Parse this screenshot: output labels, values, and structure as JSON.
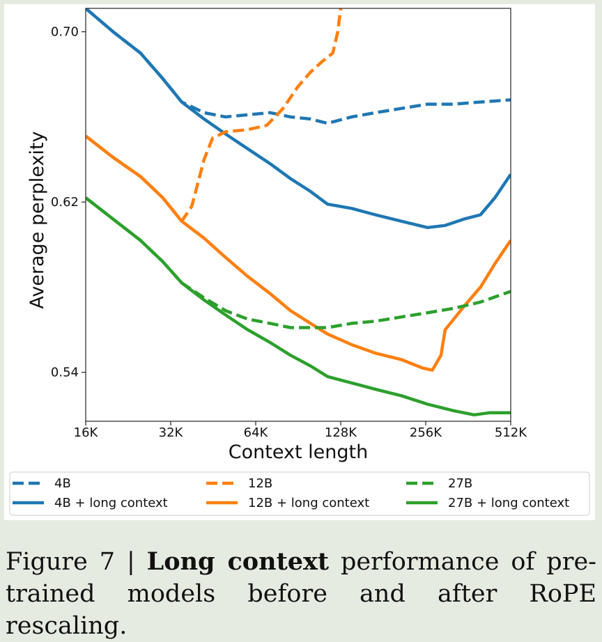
{
  "chart_data": {
    "type": "line",
    "xlabel": "Context length",
    "ylabel": "Average perplexity",
    "x_scale": "log2",
    "xlim_k": [
      16,
      512
    ],
    "ylim": [
      0.517,
      0.711
    ],
    "x_ticks": [
      {
        "value": 16,
        "label": "16K"
      },
      {
        "value": 32,
        "label": "32K"
      },
      {
        "value": 64,
        "label": "64K"
      },
      {
        "value": 128,
        "label": "128K"
      },
      {
        "value": 256,
        "label": "256K"
      },
      {
        "value": 512,
        "label": "512K"
      }
    ],
    "y_ticks": [
      {
        "value": 0.54,
        "label": "0.54"
      },
      {
        "value": 0.62,
        "label": "0.62"
      },
      {
        "value": 0.7,
        "label": "0.70"
      }
    ],
    "legend_location": "bottom",
    "series": [
      {
        "name": "4B",
        "color": "#1f77b4",
        "style": "dashed",
        "x": [
          16,
          20,
          25,
          30,
          35,
          42,
          50,
          60,
          72,
          85,
          100,
          115,
          140,
          170,
          210,
          260,
          320,
          400,
          512
        ],
        "y": [
          0.711,
          0.7,
          0.69,
          0.678,
          0.667,
          0.662,
          0.66,
          0.661,
          0.662,
          0.66,
          0.659,
          0.657,
          0.66,
          0.662,
          0.664,
          0.666,
          0.666,
          0.667,
          0.668
        ]
      },
      {
        "name": "4B + long context",
        "color": "#1f77b4",
        "style": "solid",
        "x": [
          16,
          20,
          25,
          30,
          35,
          42,
          50,
          60,
          72,
          85,
          100,
          115,
          140,
          170,
          210,
          260,
          300,
          350,
          400,
          450,
          512
        ],
        "y": [
          0.711,
          0.7,
          0.69,
          0.678,
          0.667,
          0.659,
          0.652,
          0.645,
          0.638,
          0.631,
          0.625,
          0.619,
          0.617,
          0.614,
          0.611,
          0.608,
          0.609,
          0.612,
          0.614,
          0.622,
          0.633
        ]
      },
      {
        "name": "12B",
        "color": "#ff7f0e",
        "style": "dashed",
        "x": [
          16,
          20,
          25,
          30,
          35,
          38,
          42,
          45,
          50,
          60,
          70,
          80,
          90,
          100,
          110,
          120,
          125,
          128
        ],
        "y": [
          0.651,
          0.641,
          0.632,
          0.622,
          0.611,
          0.618,
          0.64,
          0.65,
          0.653,
          0.654,
          0.656,
          0.664,
          0.674,
          0.681,
          0.686,
          0.69,
          0.7,
          0.711
        ]
      },
      {
        "name": "12B + long context",
        "color": "#ff7f0e",
        "style": "solid",
        "x": [
          16,
          20,
          25,
          30,
          35,
          42,
          50,
          60,
          72,
          85,
          100,
          115,
          140,
          170,
          210,
          250,
          270,
          290,
          300,
          350,
          400,
          450,
          512
        ],
        "y": [
          0.651,
          0.641,
          0.632,
          0.622,
          0.611,
          0.603,
          0.594,
          0.585,
          0.577,
          0.569,
          0.563,
          0.558,
          0.553,
          0.549,
          0.546,
          0.542,
          0.541,
          0.548,
          0.56,
          0.571,
          0.58,
          0.591,
          0.602
        ]
      },
      {
        "name": "27B",
        "color": "#2ca02c",
        "style": "dashed",
        "x": [
          16,
          20,
          25,
          30,
          35,
          42,
          50,
          60,
          72,
          85,
          100,
          115,
          140,
          170,
          210,
          260,
          320,
          400,
          512
        ],
        "y": [
          0.622,
          0.612,
          0.602,
          0.592,
          0.582,
          0.575,
          0.569,
          0.565,
          0.563,
          0.561,
          0.561,
          0.561,
          0.563,
          0.564,
          0.566,
          0.568,
          0.57,
          0.573,
          0.578
        ]
      },
      {
        "name": "27B + long context",
        "color": "#2ca02c",
        "style": "solid",
        "x": [
          16,
          20,
          25,
          30,
          35,
          42,
          50,
          60,
          72,
          85,
          100,
          115,
          140,
          170,
          210,
          260,
          320,
          380,
          430,
          512
        ],
        "y": [
          0.622,
          0.612,
          0.602,
          0.592,
          0.582,
          0.574,
          0.567,
          0.56,
          0.554,
          0.548,
          0.543,
          0.538,
          0.535,
          0.532,
          0.529,
          0.525,
          0.522,
          0.52,
          0.521,
          0.521
        ]
      }
    ]
  },
  "caption": {
    "prefix": "Figure 7 | ",
    "bold": "Long context",
    "rest": " performance of pre-trained models before and after RoPE rescaling."
  }
}
